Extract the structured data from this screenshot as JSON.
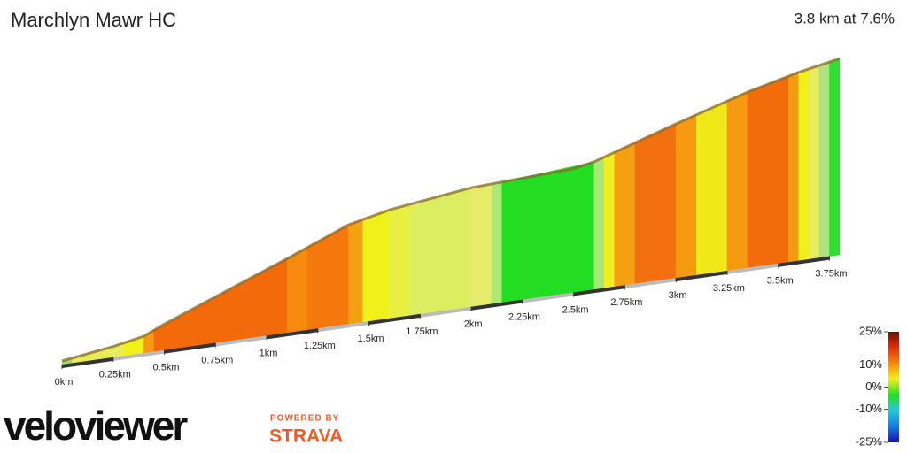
{
  "chart_data": {
    "type": "elevation-profile",
    "title": "Marchlyn Mawr HC",
    "subtitle": "3.8 km at 7.6%",
    "xlim": [
      0,
      3.8
    ],
    "xticks": [
      {
        "value": 0,
        "label": "0km"
      },
      {
        "value": 0.25,
        "label": "0.25km"
      },
      {
        "value": 0.5,
        "label": "0.5km"
      },
      {
        "value": 0.75,
        "label": "0.75km"
      },
      {
        "value": 1,
        "label": "1km"
      },
      {
        "value": 1.25,
        "label": "1.25km"
      },
      {
        "value": 1.5,
        "label": "1.5km"
      },
      {
        "value": 1.75,
        "label": "1.75km"
      },
      {
        "value": 2,
        "label": "2km"
      },
      {
        "value": 2.25,
        "label": "2.25km"
      },
      {
        "value": 2.5,
        "label": "2.5km"
      },
      {
        "value": 2.75,
        "label": "2.75km"
      },
      {
        "value": 3,
        "label": "3km"
      },
      {
        "value": 3.25,
        "label": "3.25km"
      },
      {
        "value": 3.5,
        "label": "3.5km"
      },
      {
        "value": 3.75,
        "label": "3.75km"
      }
    ],
    "profile": {
      "x": [
        0,
        0.25,
        0.4,
        0.5,
        1.1,
        1.4,
        1.6,
        2.0,
        2.5,
        2.6,
        3.0,
        3.35,
        3.6,
        3.8
      ],
      "elevation": [
        0,
        11,
        20,
        34,
        107,
        145,
        159,
        175,
        182,
        188,
        228,
        261,
        280,
        292
      ]
    },
    "segments": {
      "x": [
        0,
        0.05,
        0.3,
        0.4,
        0.45,
        1.1,
        1.2,
        1.4,
        1.47,
        1.6,
        1.7,
        2.0,
        2.1,
        2.15,
        2.6,
        2.65,
        2.7,
        2.8,
        3.0,
        3.1,
        3.25,
        3.35,
        3.55,
        3.6,
        3.65,
        3.7,
        3.75,
        3.8
      ],
      "gradient": [
        2,
        5,
        8,
        14,
        17,
        13,
        15,
        11,
        8,
        6,
        5,
        5,
        3,
        1,
        3,
        8,
        11,
        16,
        12,
        9,
        12,
        17,
        12,
        8,
        5,
        3,
        1
      ],
      "colors": [
        "#9bd86b",
        "#e8ec5a",
        "#f2f01a",
        "#f59a10",
        "#f26a0a",
        "#f58a0f",
        "#f5780c",
        "#f5a012",
        "#f0f01a",
        "#e8ef40",
        "#dcee60",
        "#e4ec6a",
        "#b0e878",
        "#22dd22",
        "#a8e878",
        "#f0f020",
        "#f5a012",
        "#f27010",
        "#f59a10",
        "#f0e818",
        "#f59a10",
        "#f26c0a",
        "#f59a10",
        "#f0f020",
        "#e8ea60",
        "#b0e080",
        "#33dd33"
      ]
    },
    "colorbar": {
      "clim": [
        -25,
        25
      ],
      "ticks": [
        {
          "value": 25,
          "label": "25%"
        },
        {
          "value": 10,
          "label": "10%"
        },
        {
          "value": 0,
          "label": "0%"
        },
        {
          "value": -10,
          "label": "-10%"
        },
        {
          "value": -25,
          "label": "-25%"
        }
      ],
      "colors": [
        "#1a0fb0",
        "#1a7ae0",
        "#22c8e0",
        "#22dd22",
        "#f0f020",
        "#f58a0f",
        "#e0300a",
        "#6a1008"
      ]
    },
    "branding": {
      "logo": "veloviewer",
      "powered": "POWERED BY",
      "strava": "STRAVA"
    }
  }
}
